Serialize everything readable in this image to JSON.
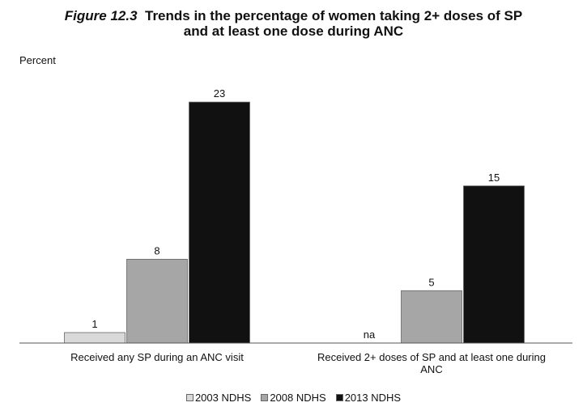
{
  "title": {
    "figure_label": "Figure 12.3",
    "line1": "Trends in the percentage of women taking 2+ doses of SP",
    "line2": "and at least one dose during ANC"
  },
  "chart_data": {
    "type": "bar",
    "ylabel": "Percent",
    "ylim": [
      0,
      25
    ],
    "grid": false,
    "legend_position": "bottom",
    "categories": [
      [
        "Received any SP during an ANC visit"
      ],
      [
        "Received 2+ doses of SP and at least one during",
        "ANC"
      ]
    ],
    "series": [
      {
        "name": "2003 NDHS",
        "color": "#d9d9d9",
        "values": [
          1,
          null
        ],
        "labels": [
          "1",
          "na"
        ]
      },
      {
        "name": "2008 NDHS",
        "color": "#a6a6a6",
        "values": [
          8,
          5
        ],
        "labels": [
          "8",
          "5"
        ]
      },
      {
        "name": "2013 NDHS",
        "color": "#111111",
        "values": [
          23,
          15
        ],
        "labels": [
          "23",
          "15"
        ]
      }
    ]
  }
}
